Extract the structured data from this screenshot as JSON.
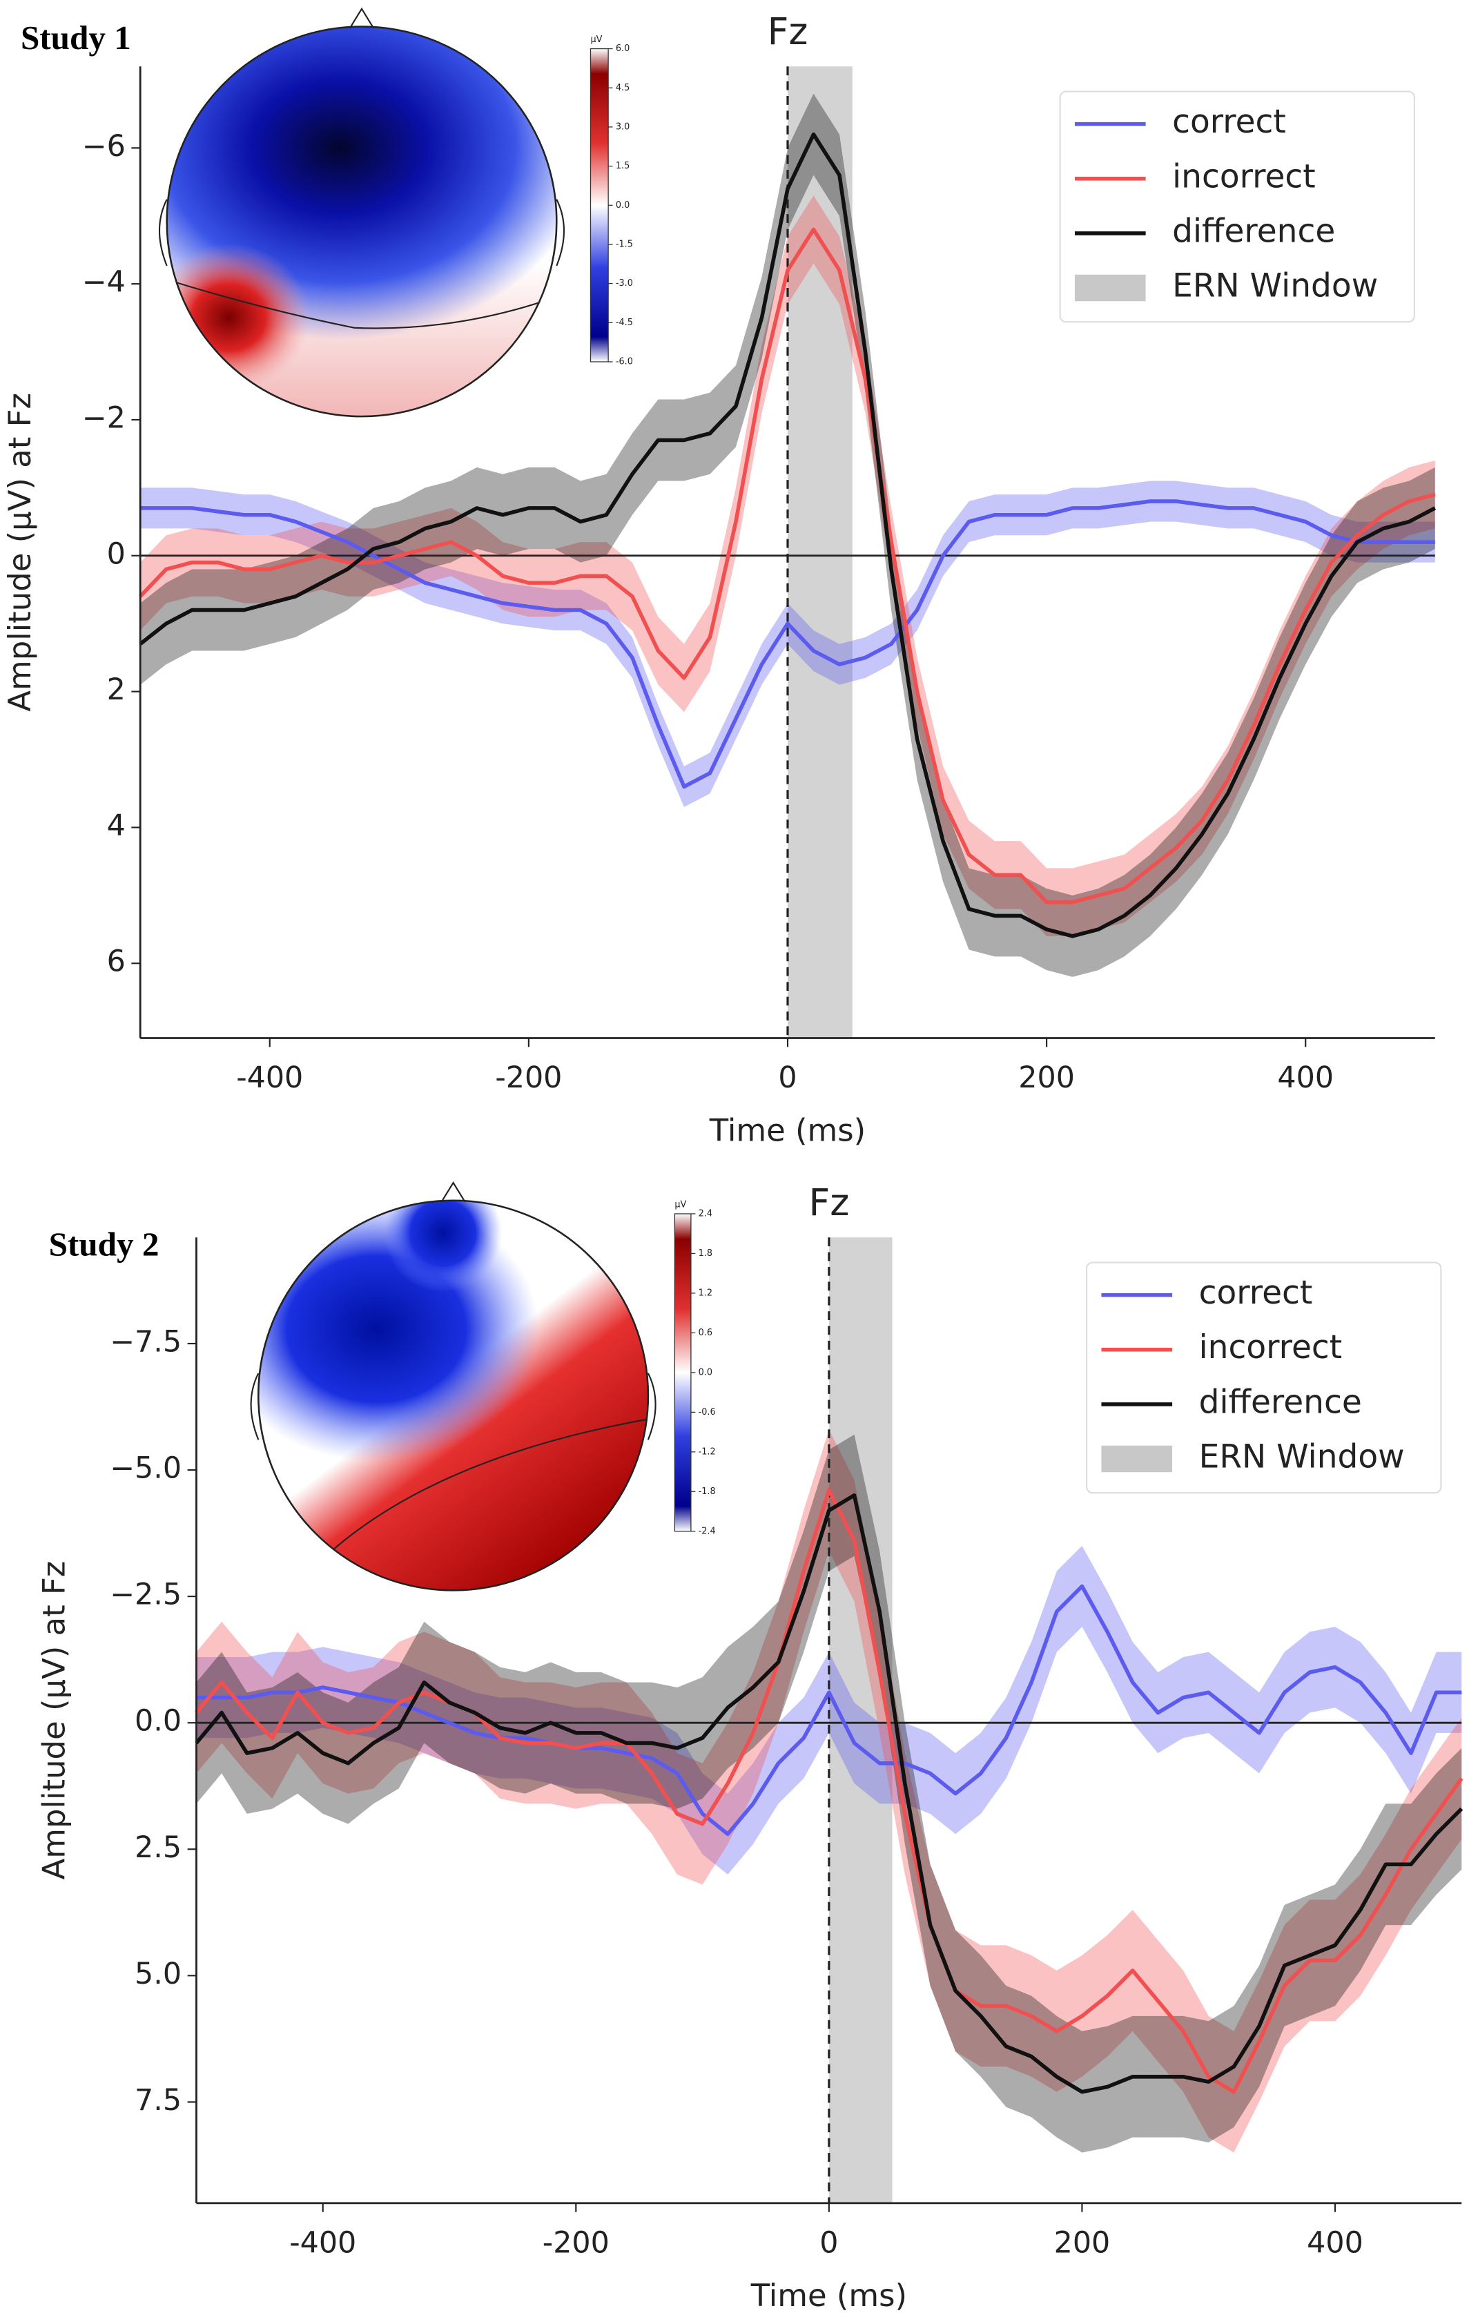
{
  "chart_data": [
    {
      "type": "line",
      "study": "Study 1",
      "title": "Fz",
      "xlabel": "Time (ms)",
      "ylabel": "Amplitude (µV) at Fz",
      "legend": "upper right",
      "x": [
        -500,
        -480,
        -460,
        -440,
        -420,
        -400,
        -380,
        -360,
        -340,
        -320,
        -300,
        -280,
        -260,
        -240,
        -220,
        -200,
        -180,
        -160,
        -140,
        -120,
        -100,
        -80,
        -60,
        -40,
        -20,
        0,
        20,
        40,
        60,
        80,
        100,
        120,
        140,
        160,
        180,
        200,
        220,
        240,
        260,
        280,
        300,
        320,
        340,
        360,
        380,
        400,
        420,
        440,
        460,
        480,
        500
      ],
      "xlim": [
        -500,
        500
      ],
      "xticks": [
        -400,
        -200,
        0,
        200,
        400
      ],
      "ylim": [
        7.1,
        -7.2
      ],
      "yticks": [
        {
          "value": -6,
          "label": "−6"
        },
        {
          "value": -4,
          "label": "−4"
        },
        {
          "value": -2,
          "label": "−2"
        },
        0,
        2,
        4,
        6
      ],
      "window": {
        "name": "ERN Window",
        "range": [
          0,
          50
        ],
        "color": "#c8c8c8"
      },
      "series": [
        {
          "name": "correct",
          "color": "#5b5bf0",
          "band": 0.3,
          "values": [
            -0.7,
            -0.7,
            -0.7,
            -0.65,
            -0.6,
            -0.6,
            -0.5,
            -0.35,
            -0.2,
            0,
            0.2,
            0.4,
            0.5,
            0.6,
            0.7,
            0.75,
            0.8,
            0.8,
            1.0,
            1.5,
            2.5,
            3.4,
            3.2,
            2.4,
            1.6,
            1.0,
            1.4,
            1.6,
            1.5,
            1.3,
            0.8,
            0,
            -0.5,
            -0.6,
            -0.6,
            -0.6,
            -0.7,
            -0.7,
            -0.75,
            -0.8,
            -0.8,
            -0.75,
            -0.7,
            -0.7,
            -0.6,
            -0.5,
            -0.3,
            -0.2,
            -0.2,
            -0.2,
            -0.2
          ]
        },
        {
          "name": "incorrect",
          "color": "#f05050",
          "band": 0.5,
          "values": [
            0.6,
            0.2,
            0.1,
            0.1,
            0.2,
            0.2,
            0.1,
            0,
            0.1,
            0.1,
            0,
            -0.1,
            -0.2,
            0,
            0.3,
            0.4,
            0.4,
            0.3,
            0.3,
            0.6,
            1.4,
            1.8,
            1.2,
            -0.5,
            -2.6,
            -4.2,
            -4.8,
            -4.2,
            -2.6,
            -0.2,
            2.0,
            3.6,
            4.4,
            4.7,
            4.7,
            5.1,
            5.1,
            5.0,
            4.9,
            4.6,
            4.3,
            3.9,
            3.3,
            2.5,
            1.6,
            0.8,
            0.1,
            -0.3,
            -0.6,
            -0.8,
            -0.9
          ]
        },
        {
          "name": "difference",
          "color": "#111111",
          "band": 0.6,
          "values": [
            1.3,
            1.0,
            0.8,
            0.8,
            0.8,
            0.7,
            0.6,
            0.4,
            0.2,
            -0.1,
            -0.2,
            -0.4,
            -0.5,
            -0.7,
            -0.6,
            -0.7,
            -0.7,
            -0.5,
            -0.6,
            -1.2,
            -1.7,
            -1.7,
            -1.8,
            -2.2,
            -3.5,
            -5.4,
            -6.2,
            -5.6,
            -3.0,
            0.2,
            2.7,
            4.2,
            5.2,
            5.3,
            5.3,
            5.5,
            5.6,
            5.5,
            5.3,
            5.0,
            4.6,
            4.1,
            3.5,
            2.7,
            1.8,
            1.0,
            0.3,
            -0.2,
            -0.4,
            -0.5,
            -0.7
          ]
        }
      ],
      "colorbar": {
        "label": "µV",
        "lim": [
          -6,
          6
        ],
        "ticks": [
          {
            "value": 6,
            "label": "6.0"
          },
          {
            "value": 4.5,
            "label": "4.5"
          },
          {
            "value": 3,
            "label": "3.0"
          },
          {
            "value": 1.5,
            "label": "1.5"
          },
          {
            "value": 0,
            "label": "0.0"
          },
          -1.5,
          {
            "value": -3,
            "label": "-3.0"
          },
          -4.5,
          {
            "value": -6,
            "label": "-6.0"
          }
        ]
      }
    },
    {
      "type": "line",
      "study": "Study 2",
      "title": "Fz",
      "xlabel": "Time (ms)",
      "ylabel": "Amplitude (µV) at Fz",
      "legend": "upper right",
      "x": [
        -500,
        -480,
        -460,
        -440,
        -420,
        -400,
        -380,
        -360,
        -340,
        -320,
        -300,
        -280,
        -260,
        -240,
        -220,
        -200,
        -180,
        -160,
        -140,
        -120,
        -100,
        -80,
        -60,
        -40,
        -20,
        0,
        20,
        40,
        60,
        80,
        100,
        120,
        140,
        160,
        180,
        200,
        220,
        240,
        260,
        280,
        300,
        320,
        340,
        360,
        380,
        400,
        420,
        440,
        460,
        480,
        500
      ],
      "xlim": [
        -500,
        500
      ],
      "xticks": [
        -400,
        -200,
        0,
        200,
        400
      ],
      "ylim": [
        9.5,
        -9.6
      ],
      "yticks": [
        {
          "value": -7.5,
          "label": "−7.5"
        },
        {
          "value": -5,
          "label": "−5.0"
        },
        {
          "value": -2.5,
          "label": "−2.5"
        },
        {
          "value": 0,
          "label": "0.0"
        },
        2.5,
        {
          "value": 5,
          "label": "5.0"
        },
        7.5
      ],
      "window": {
        "name": "ERN Window",
        "range": [
          0,
          50
        ],
        "color": "#c8c8c8"
      },
      "series": [
        {
          "name": "correct",
          "color": "#5b5bf0",
          "band": 0.8,
          "values": [
            -0.5,
            -0.5,
            -0.5,
            -0.6,
            -0.6,
            -0.7,
            -0.6,
            -0.5,
            -0.4,
            -0.2,
            0,
            0.2,
            0.3,
            0.3,
            0.4,
            0.5,
            0.5,
            0.6,
            0.7,
            1.0,
            1.8,
            2.2,
            1.6,
            0.8,
            0.3,
            -0.6,
            0.4,
            0.8,
            0.8,
            1.0,
            1.4,
            1.0,
            0.3,
            -0.8,
            -2.2,
            -2.7,
            -1.8,
            -0.8,
            -0.2,
            -0.5,
            -0.6,
            -0.2,
            0.2,
            -0.6,
            -1.0,
            -1.1,
            -0.8,
            -0.2,
            0.6,
            -0.6,
            -0.6
          ]
        },
        {
          "name": "incorrect",
          "color": "#f05050",
          "band": 1.2,
          "values": [
            -0.2,
            -0.8,
            -0.2,
            0.3,
            -0.6,
            0,
            0.2,
            0.1,
            -0.4,
            -0.6,
            -0.4,
            -0.2,
            0.3,
            0.4,
            0.4,
            0.5,
            0.4,
            0.4,
            1.0,
            1.8,
            2.0,
            1.2,
            0.2,
            -1.2,
            -3.0,
            -4.6,
            -3.6,
            -1.0,
            1.8,
            4.0,
            5.3,
            5.6,
            5.6,
            5.8,
            6.1,
            5.8,
            5.4,
            4.9,
            5.5,
            6.1,
            7.0,
            7.3,
            6.3,
            5.2,
            4.7,
            4.7,
            4.2,
            3.4,
            2.5,
            1.8,
            1.1
          ]
        },
        {
          "name": "difference",
          "color": "#111111",
          "band": 1.2,
          "values": [
            0.4,
            -0.2,
            0.6,
            0.5,
            0.2,
            0.6,
            0.8,
            0.4,
            0.1,
            -0.8,
            -0.4,
            -0.2,
            0.1,
            0.2,
            0,
            0.2,
            0.2,
            0.4,
            0.4,
            0.5,
            0.3,
            -0.3,
            -0.7,
            -1.2,
            -2.6,
            -4.2,
            -4.5,
            -2.2,
            1.2,
            4.0,
            5.3,
            5.8,
            6.4,
            6.6,
            7.0,
            7.3,
            7.2,
            7.0,
            7.0,
            7.0,
            7.1,
            6.8,
            6.0,
            4.8,
            4.6,
            4.4,
            3.7,
            2.8,
            2.8,
            2.2,
            1.7
          ]
        }
      ],
      "colorbar": {
        "label": "µV",
        "lim": [
          -2.4,
          2.4
        ],
        "ticks": [
          2.4,
          1.8,
          1.2,
          0.6,
          {
            "value": 0,
            "label": "0.0"
          },
          -0.6,
          -1.2,
          -1.8,
          -2.4
        ]
      }
    }
  ]
}
